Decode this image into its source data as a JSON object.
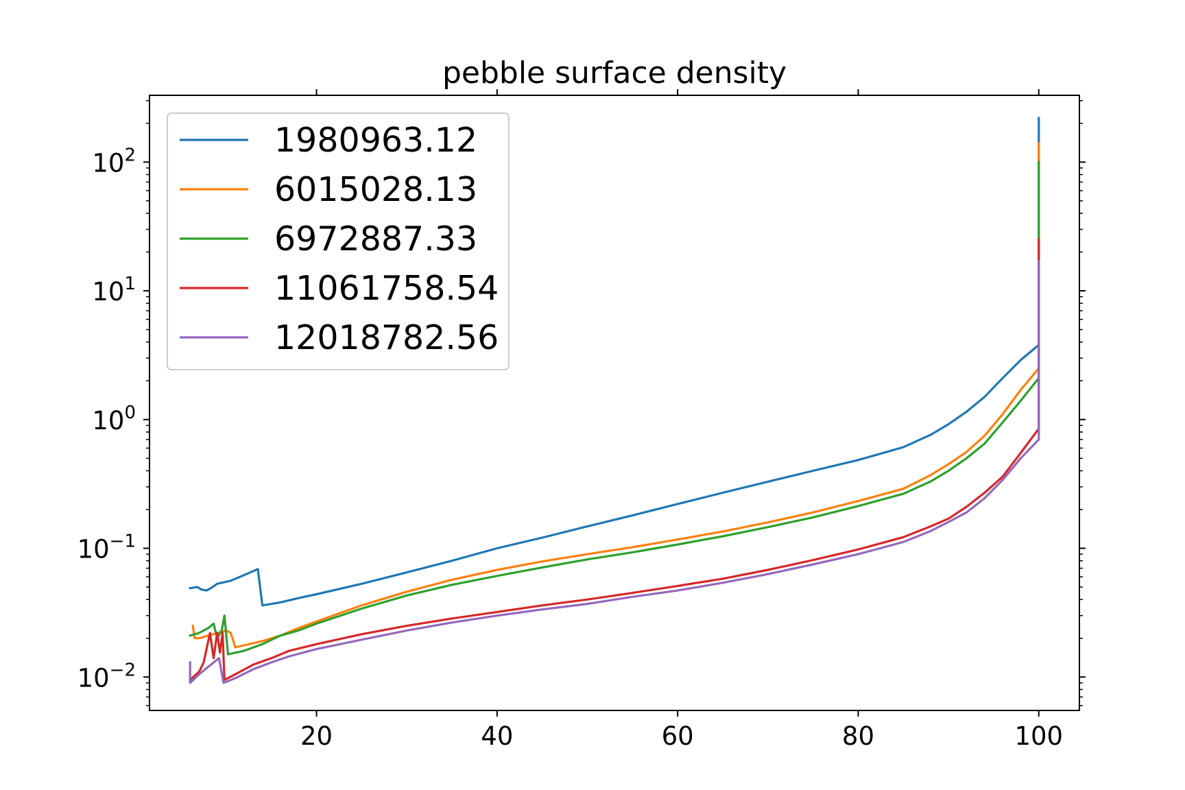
{
  "chart_data": {
    "type": "line",
    "title": "pebble surface density",
    "xlabel": "",
    "ylabel": "",
    "x_scale": "linear",
    "y_scale": "log",
    "xlim": [
      1.5,
      104.5
    ],
    "ylim": [
      0.0055,
      330
    ],
    "grid": false,
    "legend_position": "upper left",
    "x_ticks": [
      {
        "value": 20,
        "label": "20"
      },
      {
        "value": 40,
        "label": "40"
      },
      {
        "value": 60,
        "label": "60"
      },
      {
        "value": 80,
        "label": "80"
      },
      {
        "value": 100,
        "label": "100"
      }
    ],
    "y_ticks": [
      {
        "value": 0.01,
        "base": "10",
        "exp": "−2"
      },
      {
        "value": 0.1,
        "base": "10",
        "exp": "−1"
      },
      {
        "value": 1,
        "base": "10",
        "exp": "0"
      },
      {
        "value": 10,
        "base": "10",
        "exp": "1"
      },
      {
        "value": 100,
        "base": "10",
        "exp": "2"
      }
    ],
    "series": [
      {
        "name": "1980963.12",
        "color": "#1f77b4",
        "points": [
          [
            6,
            0.049
          ],
          [
            6.8,
            0.05
          ],
          [
            7.2,
            0.048
          ],
          [
            7.8,
            0.047
          ],
          [
            8.3,
            0.049
          ],
          [
            9,
            0.053
          ],
          [
            10.5,
            0.056
          ],
          [
            12,
            0.062
          ],
          [
            13.5,
            0.069
          ],
          [
            14,
            0.036
          ],
          [
            16,
            0.038
          ],
          [
            18,
            0.041
          ],
          [
            20,
            0.044
          ],
          [
            25,
            0.053
          ],
          [
            30,
            0.065
          ],
          [
            35,
            0.08
          ],
          [
            40,
            0.1
          ],
          [
            45,
            0.121
          ],
          [
            50,
            0.148
          ],
          [
            55,
            0.18
          ],
          [
            60,
            0.221
          ],
          [
            65,
            0.27
          ],
          [
            70,
            0.329
          ],
          [
            75,
            0.4
          ],
          [
            80,
            0.485
          ],
          [
            85,
            0.61
          ],
          [
            88,
            0.76
          ],
          [
            90,
            0.92
          ],
          [
            92,
            1.15
          ],
          [
            94,
            1.5
          ],
          [
            96,
            2.1
          ],
          [
            98,
            2.9
          ],
          [
            100,
            3.8
          ],
          [
            100,
            220
          ]
        ]
      },
      {
        "name": "6015028.13",
        "color": "#ff7f0e",
        "points": [
          [
            6.3,
            0.025
          ],
          [
            6.5,
            0.02
          ],
          [
            7,
            0.02
          ],
          [
            8,
            0.021
          ],
          [
            9,
            0.022
          ],
          [
            10,
            0.023
          ],
          [
            10.5,
            0.022
          ],
          [
            11,
            0.017
          ],
          [
            14,
            0.019
          ],
          [
            16,
            0.021
          ],
          [
            18,
            0.024
          ],
          [
            20,
            0.027
          ],
          [
            25,
            0.036
          ],
          [
            30,
            0.046
          ],
          [
            35,
            0.057
          ],
          [
            40,
            0.068
          ],
          [
            45,
            0.079
          ],
          [
            50,
            0.09
          ],
          [
            55,
            0.102
          ],
          [
            60,
            0.117
          ],
          [
            65,
            0.135
          ],
          [
            70,
            0.159
          ],
          [
            75,
            0.19
          ],
          [
            80,
            0.233
          ],
          [
            85,
            0.29
          ],
          [
            88,
            0.37
          ],
          [
            90,
            0.45
          ],
          [
            92,
            0.56
          ],
          [
            94,
            0.75
          ],
          [
            96,
            1.1
          ],
          [
            98,
            1.7
          ],
          [
            100,
            2.5
          ],
          [
            100,
            140
          ]
        ]
      },
      {
        "name": "6972887.33",
        "color": "#2ca02c",
        "points": [
          [
            6,
            0.021
          ],
          [
            7,
            0.022
          ],
          [
            8,
            0.024
          ],
          [
            8.6,
            0.026
          ],
          [
            9,
            0.02
          ],
          [
            9.5,
            0.023
          ],
          [
            9.8,
            0.03
          ],
          [
            10.2,
            0.015
          ],
          [
            12,
            0.016
          ],
          [
            14,
            0.018
          ],
          [
            16,
            0.021
          ],
          [
            18,
            0.023
          ],
          [
            20,
            0.026
          ],
          [
            25,
            0.034
          ],
          [
            30,
            0.043
          ],
          [
            35,
            0.052
          ],
          [
            40,
            0.061
          ],
          [
            45,
            0.071
          ],
          [
            50,
            0.082
          ],
          [
            55,
            0.093
          ],
          [
            60,
            0.107
          ],
          [
            65,
            0.124
          ],
          [
            70,
            0.146
          ],
          [
            75,
            0.174
          ],
          [
            80,
            0.213
          ],
          [
            85,
            0.265
          ],
          [
            88,
            0.33
          ],
          [
            90,
            0.4
          ],
          [
            92,
            0.5
          ],
          [
            94,
            0.65
          ],
          [
            96,
            0.95
          ],
          [
            98,
            1.4
          ],
          [
            100,
            2.1
          ],
          [
            100,
            100
          ]
        ]
      },
      {
        "name": "11061758.54",
        "color": "#d62728",
        "points": [
          [
            6,
            0.0095
          ],
          [
            7,
            0.011
          ],
          [
            7.5,
            0.013
          ],
          [
            8.2,
            0.022
          ],
          [
            8.6,
            0.014
          ],
          [
            9,
            0.022
          ],
          [
            9.3,
            0.0155
          ],
          [
            9.6,
            0.022
          ],
          [
            9.8,
            0.0095
          ],
          [
            11,
            0.0105
          ],
          [
            13,
            0.0125
          ],
          [
            15,
            0.014
          ],
          [
            17,
            0.016
          ],
          [
            20,
            0.018
          ],
          [
            25,
            0.0215
          ],
          [
            30,
            0.025
          ],
          [
            35,
            0.0285
          ],
          [
            40,
            0.032
          ],
          [
            45,
            0.036
          ],
          [
            50,
            0.04
          ],
          [
            55,
            0.045
          ],
          [
            60,
            0.051
          ],
          [
            65,
            0.058
          ],
          [
            70,
            0.068
          ],
          [
            75,
            0.081
          ],
          [
            80,
            0.098
          ],
          [
            85,
            0.122
          ],
          [
            88,
            0.148
          ],
          [
            90,
            0.17
          ],
          [
            92,
            0.21
          ],
          [
            94,
            0.27
          ],
          [
            96,
            0.36
          ],
          [
            98,
            0.55
          ],
          [
            100,
            0.85
          ],
          [
            100,
            25
          ]
        ]
      },
      {
        "name": "12018782.56",
        "color": "#9467bd",
        "points": [
          [
            6,
            0.013
          ],
          [
            6,
            0.009
          ],
          [
            7,
            0.0105
          ],
          [
            8,
            0.012
          ],
          [
            9.2,
            0.014
          ],
          [
            9.7,
            0.009
          ],
          [
            11,
            0.0098
          ],
          [
            13,
            0.0115
          ],
          [
            15,
            0.013
          ],
          [
            17,
            0.0145
          ],
          [
            20,
            0.0165
          ],
          [
            25,
            0.0195
          ],
          [
            30,
            0.023
          ],
          [
            35,
            0.0265
          ],
          [
            40,
            0.03
          ],
          [
            45,
            0.0335
          ],
          [
            50,
            0.037
          ],
          [
            55,
            0.042
          ],
          [
            60,
            0.047
          ],
          [
            65,
            0.054
          ],
          [
            70,
            0.063
          ],
          [
            75,
            0.075
          ],
          [
            80,
            0.09
          ],
          [
            85,
            0.112
          ],
          [
            88,
            0.136
          ],
          [
            90,
            0.16
          ],
          [
            92,
            0.19
          ],
          [
            94,
            0.245
          ],
          [
            96,
            0.34
          ],
          [
            98,
            0.5
          ],
          [
            100,
            0.7
          ],
          [
            100,
            17
          ]
        ]
      }
    ]
  }
}
